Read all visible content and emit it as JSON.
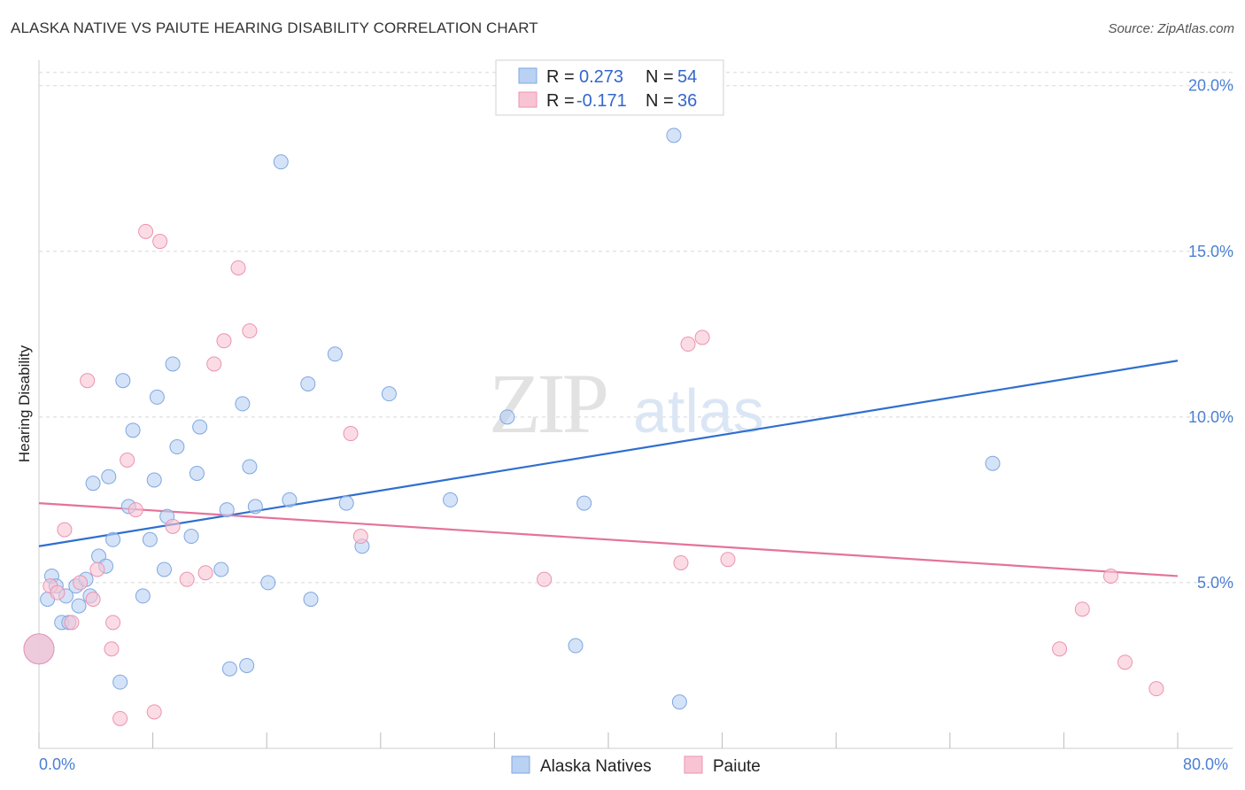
{
  "title": "ALASKA NATIVE VS PAIUTE HEARING DISABILITY CORRELATION CHART",
  "source": "Source: ZipAtlas.com",
  "watermark": {
    "zip": "ZIP",
    "atlas": "atlas"
  },
  "legend": {
    "rows": [
      {
        "r_label": "R =",
        "r_value": "0.273",
        "n_label": "N =",
        "n_value": "54"
      },
      {
        "r_label": "R =",
        "r_value": "-0.171",
        "n_label": "N =",
        "n_value": "36"
      }
    ]
  },
  "bottom_legend": [
    "Alaska Natives",
    "Paiute"
  ],
  "colors": {
    "blue_fill": "#b9d1f3",
    "blue_stroke": "#7fa7e0",
    "blue_line": "#2f6fcf",
    "pink_fill": "#f8c4d4",
    "pink_stroke": "#ec93b0",
    "pink_line": "#e4739b",
    "grid": "#d8d8d8",
    "tick_text": "#4a7fd4"
  },
  "chart_data": {
    "type": "scatter",
    "title": "ALASKA NATIVE VS PAIUTE HEARING DISABILITY CORRELATION CHART",
    "xlabel": "",
    "ylabel": "Hearing Disability",
    "xlim": [
      0,
      80
    ],
    "ylim": [
      0,
      20.5
    ],
    "x_tick_labels": [
      "0.0%",
      "80.0%"
    ],
    "y_ticks": [
      5,
      10,
      15,
      20
    ],
    "y_tick_labels": [
      "5.0%",
      "10.0%",
      "15.0%",
      "20.0%"
    ],
    "series": [
      {
        "name": "Alaska Natives",
        "r": 0.273,
        "n": 54,
        "trend": [
          [
            0,
            6.1
          ],
          [
            80,
            11.7
          ]
        ],
        "points": [
          [
            0.0,
            3.0
          ],
          [
            0.6,
            4.5
          ],
          [
            0.9,
            5.2
          ],
          [
            1.2,
            4.9
          ],
          [
            1.6,
            3.8
          ],
          [
            1.9,
            4.6
          ],
          [
            2.1,
            3.8
          ],
          [
            2.8,
            4.3
          ],
          [
            2.6,
            4.9
          ],
          [
            3.3,
            5.1
          ],
          [
            3.6,
            4.6
          ],
          [
            3.8,
            8.0
          ],
          [
            4.2,
            5.8
          ],
          [
            4.7,
            5.5
          ],
          [
            4.9,
            8.2
          ],
          [
            5.2,
            6.3
          ],
          [
            5.7,
            2.0
          ],
          [
            5.9,
            11.1
          ],
          [
            6.3,
            7.3
          ],
          [
            6.6,
            9.6
          ],
          [
            7.3,
            4.6
          ],
          [
            7.8,
            6.3
          ],
          [
            8.1,
            8.1
          ],
          [
            8.3,
            10.6
          ],
          [
            8.8,
            5.4
          ],
          [
            9.0,
            7.0
          ],
          [
            9.4,
            11.6
          ],
          [
            9.7,
            9.1
          ],
          [
            10.7,
            6.4
          ],
          [
            11.1,
            8.3
          ],
          [
            11.3,
            9.7
          ],
          [
            12.8,
            5.4
          ],
          [
            13.2,
            7.2
          ],
          [
            13.4,
            2.4
          ],
          [
            14.3,
            10.4
          ],
          [
            14.6,
            2.5
          ],
          [
            14.8,
            8.5
          ],
          [
            15.2,
            7.3
          ],
          [
            16.1,
            5.0
          ],
          [
            17.0,
            17.7
          ],
          [
            17.6,
            7.5
          ],
          [
            18.9,
            11.0
          ],
          [
            19.1,
            4.5
          ],
          [
            20.8,
            11.9
          ],
          [
            21.6,
            7.4
          ],
          [
            22.7,
            6.1
          ],
          [
            24.6,
            10.7
          ],
          [
            28.9,
            7.5
          ],
          [
            32.9,
            10.0
          ],
          [
            37.7,
            3.1
          ],
          [
            38.3,
            7.4
          ],
          [
            44.6,
            18.5
          ],
          [
            45.0,
            1.4
          ],
          [
            67.0,
            8.6
          ]
        ]
      },
      {
        "name": "Paiute",
        "r": -0.171,
        "n": 36,
        "trend": [
          [
            0,
            7.4
          ],
          [
            80,
            5.2
          ]
        ],
        "points": [
          [
            0.0,
            3.0
          ],
          [
            0.8,
            4.9
          ],
          [
            1.3,
            4.7
          ],
          [
            1.8,
            6.6
          ],
          [
            2.3,
            3.8
          ],
          [
            2.9,
            5.0
          ],
          [
            3.4,
            11.1
          ],
          [
            3.8,
            4.5
          ],
          [
            4.1,
            5.4
          ],
          [
            5.1,
            3.0
          ],
          [
            5.2,
            3.8
          ],
          [
            5.7,
            0.9
          ],
          [
            6.2,
            8.7
          ],
          [
            6.8,
            7.2
          ],
          [
            7.5,
            15.6
          ],
          [
            8.1,
            1.1
          ],
          [
            8.5,
            15.3
          ],
          [
            9.4,
            6.7
          ],
          [
            10.4,
            5.1
          ],
          [
            11.7,
            5.3
          ],
          [
            12.3,
            11.6
          ],
          [
            13.0,
            12.3
          ],
          [
            14.0,
            14.5
          ],
          [
            14.8,
            12.6
          ],
          [
            21.9,
            9.5
          ],
          [
            22.6,
            6.4
          ],
          [
            35.5,
            5.1
          ],
          [
            45.1,
            5.6
          ],
          [
            45.6,
            12.2
          ],
          [
            46.6,
            12.4
          ],
          [
            48.4,
            5.7
          ],
          [
            71.7,
            3.0
          ],
          [
            73.3,
            4.2
          ],
          [
            75.3,
            5.2
          ],
          [
            76.3,
            2.6
          ],
          [
            78.5,
            1.8
          ]
        ]
      }
    ]
  }
}
